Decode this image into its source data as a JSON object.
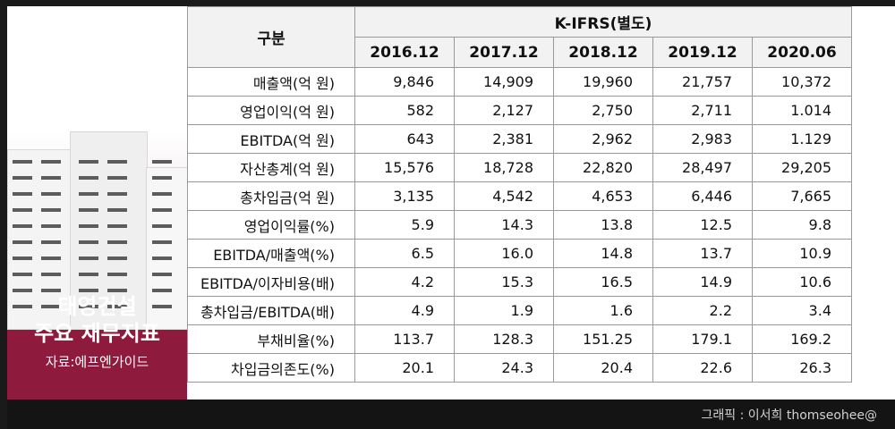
{
  "panel": {
    "title_line1": "태영건설",
    "title_line2": "주요 재무지표",
    "source": "자료:에프엔가이드"
  },
  "table": {
    "corner": "구분",
    "standard": "K-IFRS(별도)",
    "columns": [
      "2016.12",
      "2017.12",
      "2018.12",
      "2019.12",
      "2020.06"
    ],
    "rows": [
      {
        "label": "매출액(억 원)",
        "values": [
          "9,846",
          "14,909",
          "19,960",
          "21,757",
          "10,372"
        ]
      },
      {
        "label": "영업이익(억 원)",
        "values": [
          "582",
          "2,127",
          "2,750",
          "2,711",
          "1.014"
        ]
      },
      {
        "label": "EBITDA(억 원)",
        "values": [
          "643",
          "2,381",
          "2,962",
          "2,983",
          "1.129"
        ]
      },
      {
        "label": "자산총계(억 원)",
        "values": [
          "15,576",
          "18,728",
          "22,820",
          "28,497",
          "29,205"
        ]
      },
      {
        "label": "총차입금(억 원)",
        "values": [
          "3,135",
          "4,542",
          "4,653",
          "6,446",
          "7,665"
        ]
      },
      {
        "label": "영업이익률(%)",
        "values": [
          "5.9",
          "14.3",
          "13.8",
          "12.5",
          "9.8"
        ]
      },
      {
        "label": "EBITDA/매출액(%)",
        "values": [
          "6.5",
          "16.0",
          "14.8",
          "13.7",
          "10.9"
        ]
      },
      {
        "label": "EBITDA/이자비용(배)",
        "values": [
          "4.2",
          "15.3",
          "16.5",
          "14.9",
          "10.6"
        ]
      },
      {
        "label": "총차입금/EBITDA(배)",
        "values": [
          "4.9",
          "1.9",
          "1.6",
          "2.2",
          "3.4"
        ]
      },
      {
        "label": "부채비율(%)",
        "values": [
          "113.7",
          "128.3",
          "151.25",
          "179.1",
          "169.2"
        ]
      },
      {
        "label": "차입금의존도(%)",
        "values": [
          "20.1",
          "24.3",
          "20.4",
          "22.6",
          "26.3"
        ]
      }
    ]
  },
  "footer": {
    "credit": "그래픽 : 이서희 thomseohee@"
  }
}
